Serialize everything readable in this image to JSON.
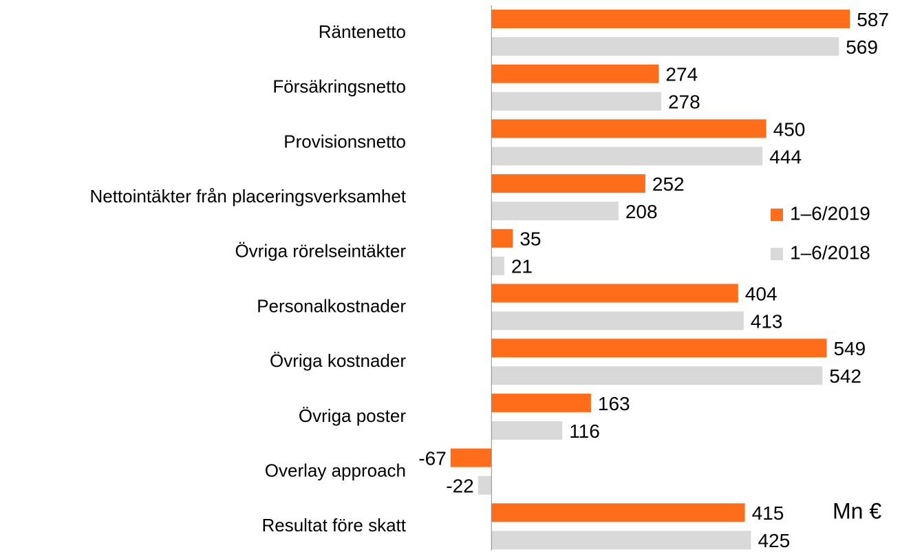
{
  "chart_data": {
    "type": "hbar",
    "categories": [
      "Räntenetto",
      "Försäkringsnetto",
      "Provisionsnetto",
      "Nettointäkter från placeringsverksamhet",
      "Övriga rörelseintäkter",
      "Personalkostnader",
      "Övriga kostnader",
      "Övriga poster",
      "Overlay approach",
      "Resultat före skatt"
    ],
    "series": [
      {
        "name": "1–6/2019",
        "color": "#ff6d1a",
        "values": [
          587,
          274,
          450,
          252,
          35,
          404,
          549,
          163,
          -67,
          415
        ]
      },
      {
        "name": "1–6/2018",
        "color": "#d9d9d9",
        "values": [
          569,
          278,
          444,
          208,
          21,
          413,
          542,
          116,
          -22,
          425
        ]
      }
    ],
    "xlim": [
      -140,
      660
    ],
    "unit_label": "Mn €",
    "legend": "right"
  }
}
